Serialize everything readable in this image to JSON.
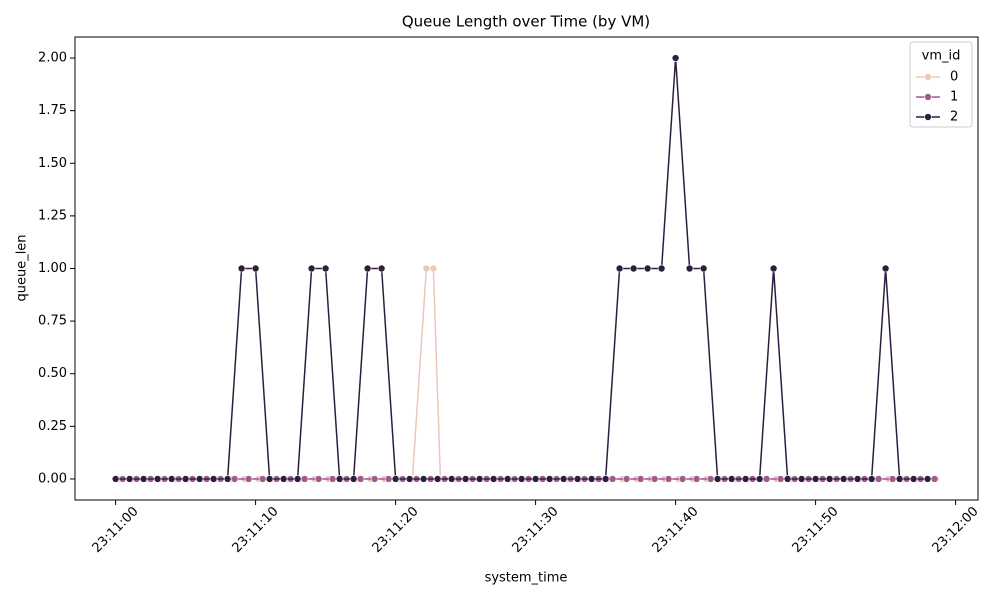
{
  "chart_data": {
    "type": "line",
    "title": "Queue Length over Time (by VM)",
    "x_label": "system_time",
    "y_label": "queue_len",
    "legend_title": "vm_id",
    "legend": "upper right",
    "xlim": [
      -2.9,
      61.6
    ],
    "ylim": [
      -0.1,
      2.1
    ],
    "xticks": [
      {
        "value": 0,
        "label": "23:11:00"
      },
      {
        "value": 10,
        "label": "23:11:10"
      },
      {
        "value": 20,
        "label": "23:11:20"
      },
      {
        "value": 30,
        "label": "23:11:30"
      },
      {
        "value": 40,
        "label": "23:11:40"
      },
      {
        "value": 50,
        "label": "23:11:50"
      },
      {
        "value": 60,
        "label": "23:12:00"
      }
    ],
    "yticks": [
      {
        "value": 0,
        "label": "0.00"
      },
      {
        "value": 0.25,
        "label": "0.25"
      },
      {
        "value": 0.5,
        "label": "0.50"
      },
      {
        "value": 0.75,
        "label": "0.75"
      },
      {
        "value": 1,
        "label": "1.00"
      },
      {
        "value": 1.25,
        "label": "1.25"
      },
      {
        "value": 1.5,
        "label": "1.50"
      },
      {
        "value": 1.75,
        "label": "1.75"
      },
      {
        "value": 2,
        "label": "2.00"
      }
    ],
    "series": [
      {
        "name": "0",
        "color": "#ebc8bc",
        "x": [
          0.2,
          1.2,
          2.2,
          3.2,
          4.2,
          5.2,
          6.2,
          7.2,
          8.2,
          9.2,
          10.2,
          11.2,
          12.2,
          13.2,
          14.2,
          15.2,
          16.2,
          17.2,
          18.2,
          19.2,
          20.2,
          21.2,
          22.2,
          22.7,
          23.2,
          24.2,
          25.2,
          26.2,
          27.2,
          28.2,
          29.2,
          30.2,
          31.2,
          32.2,
          33.2,
          34.2,
          35.2,
          36.2,
          37.2,
          38.2,
          39.2,
          40.2,
          41.2,
          42.2,
          43.2,
          44.2,
          45.2,
          46.2,
          47.2,
          48.2,
          49.2,
          50.2,
          51.2,
          52.2,
          53.2,
          54.2,
          55.2,
          56.2,
          57.2,
          58.6
        ],
        "values": [
          0,
          0,
          0,
          0,
          0,
          0,
          0,
          0,
          0,
          0,
          0,
          0,
          0,
          0,
          0,
          0,
          0,
          0,
          0,
          0,
          0,
          0,
          1,
          1,
          0,
          0,
          0,
          0,
          0,
          0,
          0,
          0,
          0,
          0,
          0,
          0,
          0,
          0,
          0,
          0,
          0,
          0,
          0,
          0,
          0,
          0,
          0,
          0,
          0,
          0,
          0,
          0,
          0,
          0,
          0,
          0,
          0,
          0,
          0,
          0
        ]
      },
      {
        "name": "1",
        "color": "#a15a8b",
        "x": [
          0.5,
          1.5,
          2.5,
          3.5,
          4.5,
          5.5,
          6.5,
          7.5,
          8.5,
          9.5,
          10.5,
          11.5,
          12.5,
          13.5,
          14.5,
          15.5,
          16.5,
          17.5,
          18.5,
          19.5,
          20.5,
          21.5,
          22.5,
          23.5,
          24.5,
          25.5,
          26.5,
          27.5,
          28.5,
          29.5,
          30.5,
          31.5,
          32.5,
          33.5,
          34.5,
          35.5,
          36.5,
          37.5,
          38.5,
          39.5,
          40.5,
          41.5,
          42.5,
          43.5,
          44.5,
          45.5,
          46.5,
          47.5,
          48.5,
          49.5,
          50.5,
          51.5,
          52.5,
          53.5,
          54.5,
          55.5,
          56.5,
          57.5,
          58.5
        ],
        "values": [
          0,
          0,
          0,
          0,
          0,
          0,
          0,
          0,
          0,
          0,
          0,
          0,
          0,
          0,
          0,
          0,
          0,
          0,
          0,
          0,
          0,
          0,
          0,
          0,
          0,
          0,
          0,
          0,
          0,
          0,
          0,
          0,
          0,
          0,
          0,
          0,
          0,
          0,
          0,
          0,
          0,
          0,
          0,
          0,
          0,
          0,
          0,
          0,
          0,
          0,
          0,
          0,
          0,
          0,
          0,
          0,
          0,
          0,
          0
        ]
      },
      {
        "name": "2",
        "color": "#2d1e3e",
        "x": [
          0,
          1,
          2,
          3,
          4,
          5,
          6,
          7,
          8,
          9,
          10,
          11,
          12,
          13,
          14,
          15,
          16,
          17,
          18,
          19,
          20,
          21,
          22,
          23,
          24,
          25,
          26,
          27,
          28,
          29,
          30,
          31,
          32,
          33,
          34,
          35,
          36,
          37,
          38,
          39,
          40,
          41,
          42,
          43,
          44,
          45,
          46,
          47,
          48,
          49,
          50,
          51,
          52,
          53,
          54,
          55,
          56,
          57,
          58
        ],
        "values": [
          0,
          0,
          0,
          0,
          0,
          0,
          0,
          0,
          0,
          1,
          1,
          0,
          0,
          0,
          1,
          1,
          0,
          0,
          1,
          1,
          0,
          0,
          0,
          0,
          0,
          0,
          0,
          0,
          0,
          0,
          0,
          0,
          0,
          0,
          0,
          0,
          1,
          1,
          1,
          1,
          2,
          1,
          1,
          0,
          0,
          0,
          0,
          1,
          0,
          0,
          0,
          0,
          0,
          0,
          0,
          1,
          0,
          0,
          0
        ]
      }
    ]
  }
}
